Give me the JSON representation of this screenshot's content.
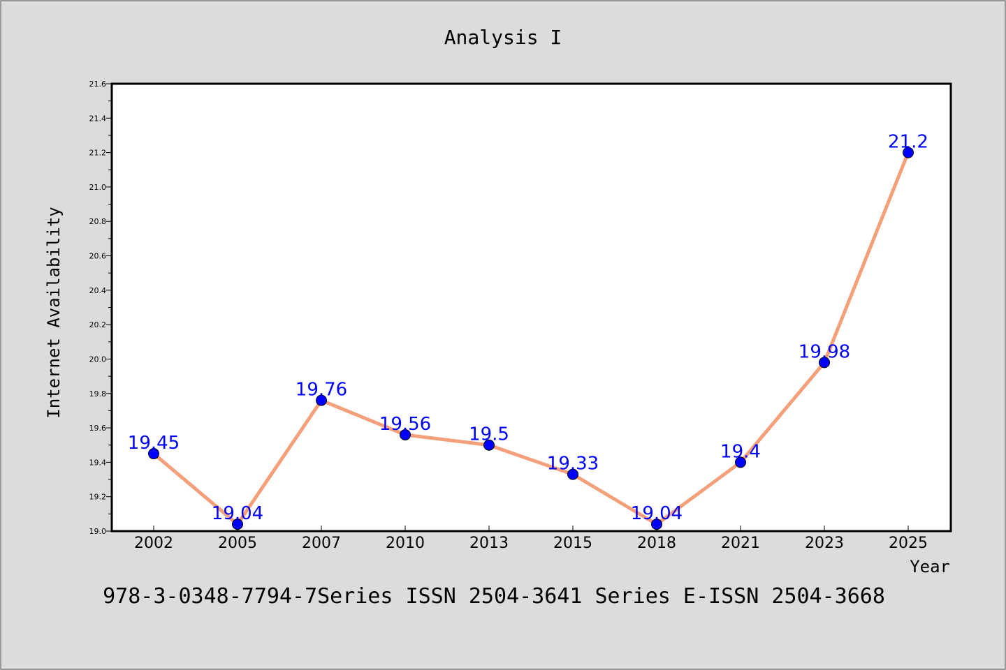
{
  "chart_data": {
    "type": "line",
    "title": "Analysis I",
    "xlabel": "Year",
    "ylabel": "Internet Availability",
    "categories": [
      "2002",
      "2005",
      "2007",
      "2010",
      "2013",
      "2015",
      "2018",
      "2021",
      "2023",
      "2025"
    ],
    "series": [
      {
        "values": [
          19.45,
          19.04,
          19.76,
          19.56,
          19.5,
          19.33,
          19.04,
          19.4,
          19.98,
          21.2
        ],
        "labels": [
          "19.45",
          "19.04",
          "19.76",
          "19.56",
          "19.5",
          "19.33",
          "19.04",
          "19.4",
          "19.98",
          "21.2"
        ]
      }
    ],
    "ylim": [
      19.0,
      21.6
    ],
    "yticks": [
      "19.0",
      "19.2",
      "19.4",
      "19.6",
      "19.8",
      "20.0",
      "20.2",
      "20.4",
      "20.6",
      "20.8",
      "21.0",
      "21.2",
      "21.4",
      "21.6"
    ],
    "grid": false,
    "colors": {
      "line": "#f4a07a",
      "marker": "#0000ff",
      "label": "#0000ff",
      "background": "#dcdcdc",
      "plot_bg": "#ffffff"
    }
  },
  "footer": {
    "text": "978-3-0348-7794-7Series ISSN 2504-3641 Series E-ISSN 2504-3668"
  }
}
